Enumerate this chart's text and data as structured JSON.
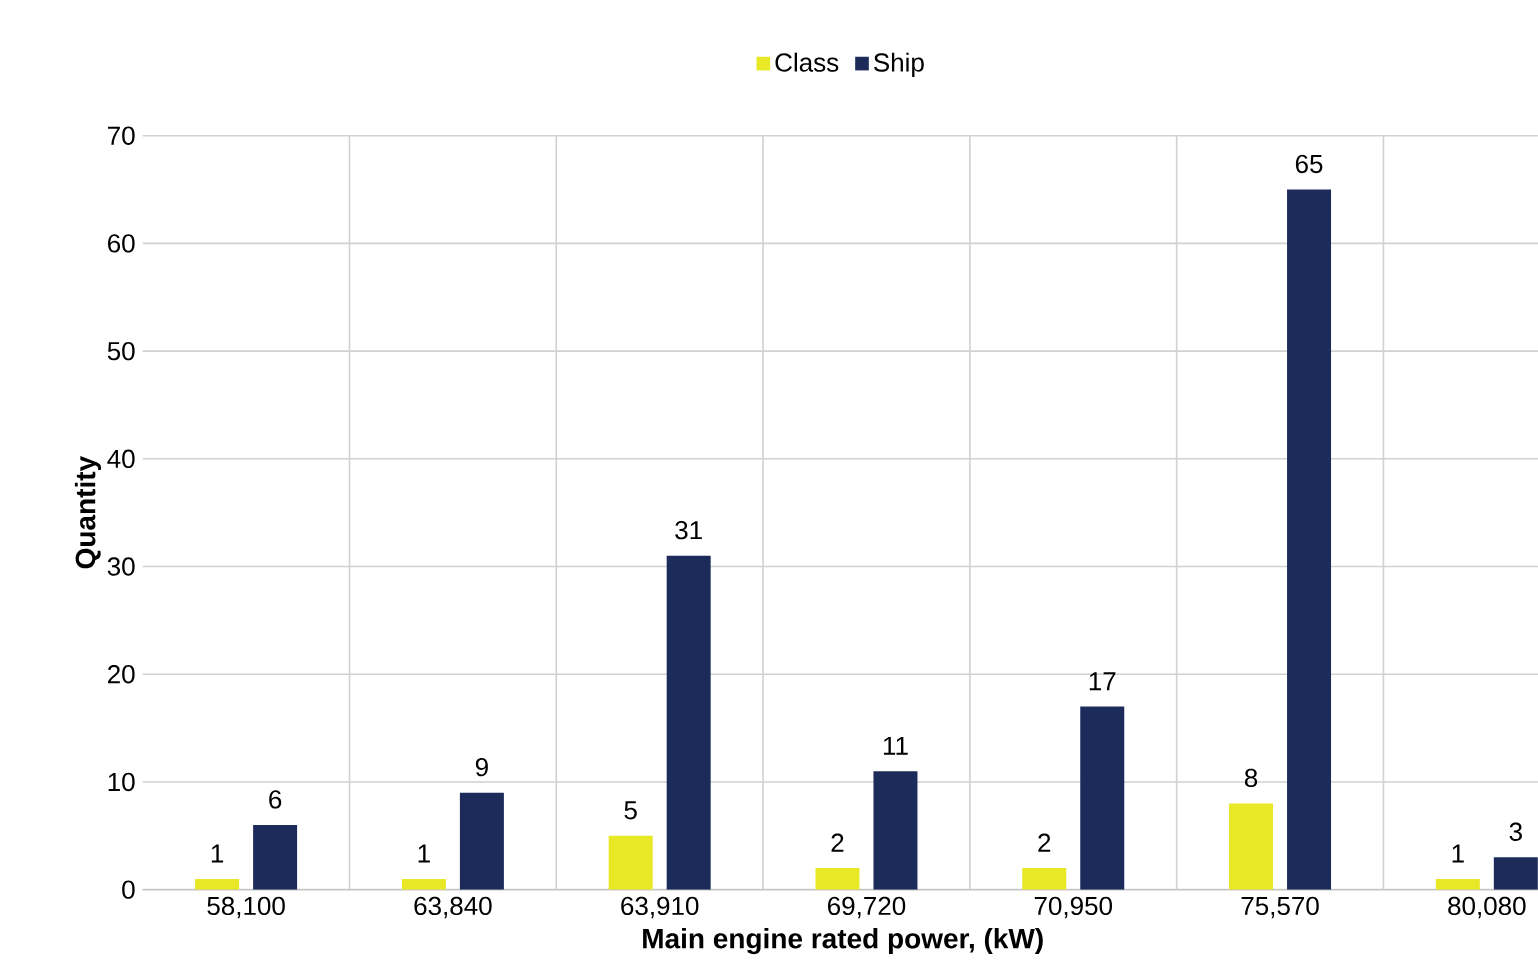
{
  "chart_data": {
    "type": "bar",
    "xlabel": "Main engine rated power, (kW)",
    "ylabel": "Quantity",
    "categories": [
      "58,100",
      "63,840",
      "63,910",
      "69,720",
      "70,950",
      "75,570",
      "80,080"
    ],
    "series": [
      {
        "name": "Class",
        "color": "#e8e827",
        "values": [
          1,
          1,
          5,
          2,
          2,
          8,
          1
        ]
      },
      {
        "name": "Ship",
        "color": "#1c2b5a",
        "values": [
          6,
          9,
          31,
          11,
          17,
          65,
          3
        ]
      }
    ],
    "ylim": [
      0,
      70
    ],
    "yticks": [
      0,
      10,
      20,
      30,
      40,
      50,
      60,
      70
    ],
    "grid": true,
    "legend": "top",
    "data_labels": true
  }
}
